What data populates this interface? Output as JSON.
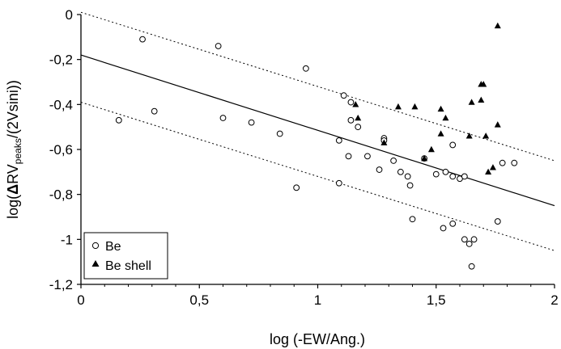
{
  "chart_data": {
    "type": "scatter",
    "xlabel": "log (-EW/Ang.)",
    "ylabel": {
      "prefix": "log(",
      "delta": "Δ",
      "rv": "RV",
      "subscript": "peaks",
      "suffix": "/(2Vsini))"
    },
    "xlim": [
      0,
      2
    ],
    "ylim": [
      -1.2,
      0
    ],
    "xticks": [
      {
        "value": 0,
        "label": "0"
      },
      {
        "value": 0.5,
        "label": "0,5"
      },
      {
        "value": 1,
        "label": "1"
      },
      {
        "value": 1.5,
        "label": "1,5"
      },
      {
        "value": 2,
        "label": "2"
      }
    ],
    "yticks": [
      {
        "value": 0,
        "label": "0"
      },
      {
        "value": -0.2,
        "label": "-0,2"
      },
      {
        "value": -0.4,
        "label": "-0,4"
      },
      {
        "value": -0.6,
        "label": "-0,6"
      },
      {
        "value": -0.8,
        "label": "-0,8"
      },
      {
        "value": -1,
        "label": "-1"
      },
      {
        "value": -1.2,
        "label": "-1,2"
      }
    ],
    "grid": false,
    "legend_position": "bottom-left",
    "series": [
      {
        "name": "Be",
        "marker": "open-circle",
        "points": [
          [
            0.16,
            -0.47
          ],
          [
            0.26,
            -0.11
          ],
          [
            0.31,
            -0.43
          ],
          [
            0.58,
            -0.14
          ],
          [
            0.6,
            -0.46
          ],
          [
            0.72,
            -0.48
          ],
          [
            0.84,
            -0.53
          ],
          [
            0.91,
            -0.77
          ],
          [
            0.95,
            -0.24
          ],
          [
            1.09,
            -0.56
          ],
          [
            1.09,
            -0.75
          ],
          [
            1.11,
            -0.36
          ],
          [
            1.13,
            -0.63
          ],
          [
            1.14,
            -0.39
          ],
          [
            1.14,
            -0.47
          ],
          [
            1.17,
            -0.5
          ],
          [
            1.21,
            -0.63
          ],
          [
            1.26,
            -0.69
          ],
          [
            1.28,
            -0.55
          ],
          [
            1.28,
            -0.56
          ],
          [
            1.32,
            -0.65
          ],
          [
            1.35,
            -0.7
          ],
          [
            1.38,
            -0.72
          ],
          [
            1.39,
            -0.76
          ],
          [
            1.4,
            -0.91
          ],
          [
            1.45,
            -0.64
          ],
          [
            1.5,
            -0.71
          ],
          [
            1.53,
            -0.95
          ],
          [
            1.54,
            -0.7
          ],
          [
            1.57,
            -0.72
          ],
          [
            1.57,
            -0.93
          ],
          [
            1.57,
            -0.58
          ],
          [
            1.6,
            -0.73
          ],
          [
            1.62,
            -0.72
          ],
          [
            1.62,
            -1.0
          ],
          [
            1.64,
            -1.02
          ],
          [
            1.65,
            -1.12
          ],
          [
            1.66,
            -1.0
          ],
          [
            1.76,
            -0.92
          ],
          [
            1.78,
            -0.66
          ],
          [
            1.83,
            -0.66
          ]
        ]
      },
      {
        "name": "Be shell",
        "marker": "filled-triangle",
        "points": [
          [
            1.16,
            -0.4
          ],
          [
            1.17,
            -0.46
          ],
          [
            1.28,
            -0.57
          ],
          [
            1.34,
            -0.41
          ],
          [
            1.41,
            -0.41
          ],
          [
            1.45,
            -0.64
          ],
          [
            1.48,
            -0.6
          ],
          [
            1.52,
            -0.42
          ],
          [
            1.52,
            -0.53
          ],
          [
            1.54,
            -0.46
          ],
          [
            1.64,
            -0.54
          ],
          [
            1.65,
            -0.39
          ],
          [
            1.69,
            -0.38
          ],
          [
            1.69,
            -0.31
          ],
          [
            1.7,
            -0.31
          ],
          [
            1.71,
            -0.54
          ],
          [
            1.72,
            -0.7
          ],
          [
            1.74,
            -0.68
          ],
          [
            1.76,
            -0.49
          ],
          [
            1.76,
            -0.05
          ]
        ]
      }
    ],
    "lines": [
      {
        "style": "solid",
        "from": [
          0,
          -0.18
        ],
        "to": [
          2,
          -0.85
        ]
      },
      {
        "style": "dotted",
        "from": [
          0,
          0.01
        ],
        "to": [
          2,
          -0.65
        ]
      },
      {
        "style": "dotted",
        "from": [
          0,
          -0.39
        ],
        "to": [
          2,
          -1.05
        ]
      }
    ]
  }
}
